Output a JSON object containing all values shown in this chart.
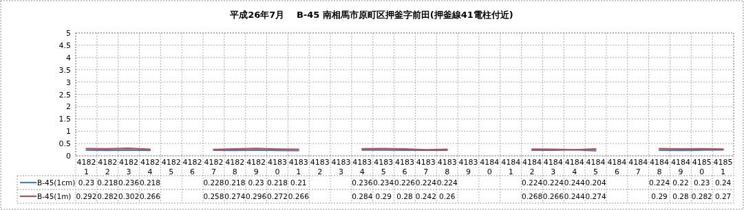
{
  "chart_data": {
    "type": "line",
    "title": "平成26年7月　 B-45 南相馬市原町区押釜字前田(押釜線41電柱付近)",
    "categories": [
      "41821",
      "41822",
      "41823",
      "41824",
      "41825",
      "41826",
      "41827",
      "41828",
      "41829",
      "41830",
      "41831",
      "41832",
      "41833",
      "41834",
      "41835",
      "41836",
      "41837",
      "41838",
      "41839",
      "41840",
      "41841",
      "41842",
      "41843",
      "41844",
      "41845",
      "41846",
      "41847",
      "41848",
      "41849",
      "41850",
      "41851"
    ],
    "series": [
      {
        "name": "B-45(1cm)",
        "color": "#4a7ebb",
        "values": [
          0.23,
          0.218,
          0.236,
          0.218,
          null,
          null,
          0.228,
          0.218,
          0.23,
          0.218,
          0.21,
          null,
          null,
          0.236,
          0.234,
          0.226,
          0.224,
          0.224,
          null,
          null,
          null,
          0.224,
          0.224,
          0.244,
          0.204,
          null,
          null,
          0.224,
          0.22,
          0.23,
          0.24
        ]
      },
      {
        "name": "B-45(1m)",
        "color": "#be4b48",
        "values": [
          0.292,
          0.282,
          0.302,
          0.266,
          null,
          null,
          0.258,
          0.274,
          0.296,
          0.272,
          0.266,
          null,
          null,
          0.284,
          0.29,
          0.28,
          0.242,
          0.26,
          null,
          null,
          null,
          0.268,
          0.266,
          0.244,
          0.274,
          null,
          null,
          0.29,
          0.28,
          0.282,
          0.27
        ]
      }
    ],
    "ylim": [
      0,
      5
    ],
    "yticks": [
      0,
      0.5,
      1,
      1.5,
      2,
      2.5,
      3,
      3.5,
      4,
      4.5,
      5
    ],
    "grid": true,
    "data_labels": true,
    "legend": "bottom",
    "marker": "none",
    "line_style": "solid"
  }
}
